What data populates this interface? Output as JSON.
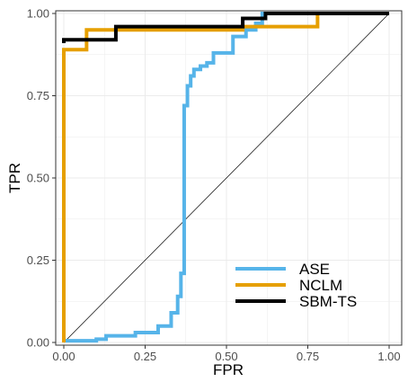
{
  "chart_data": {
    "type": "line",
    "xlabel": "FPR",
    "ylabel": "TPR",
    "xlim": [
      0,
      1
    ],
    "ylim": [
      0,
      1
    ],
    "xticks": [
      "0.00",
      "0.25",
      "0.50",
      "0.75",
      "1.00"
    ],
    "yticks": [
      "0.00",
      "0.25",
      "0.50",
      "0.75",
      "1.00"
    ],
    "grid": true,
    "legend_position": "bottom-right",
    "reference_line": {
      "from": [
        0,
        0
      ],
      "to": [
        1,
        1
      ],
      "color": "#000000"
    },
    "series": [
      {
        "name": "ASE",
        "color": "#56B4E9",
        "points": [
          [
            0.0,
            0.0
          ],
          [
            0.0,
            0.005
          ],
          [
            0.1,
            0.005
          ],
          [
            0.1,
            0.01
          ],
          [
            0.13,
            0.01
          ],
          [
            0.13,
            0.02
          ],
          [
            0.22,
            0.02
          ],
          [
            0.22,
            0.03
          ],
          [
            0.29,
            0.03
          ],
          [
            0.29,
            0.05
          ],
          [
            0.33,
            0.05
          ],
          [
            0.33,
            0.09
          ],
          [
            0.35,
            0.09
          ],
          [
            0.35,
            0.14
          ],
          [
            0.36,
            0.14
          ],
          [
            0.36,
            0.21
          ],
          [
            0.37,
            0.21
          ],
          [
            0.37,
            0.72
          ],
          [
            0.38,
            0.72
          ],
          [
            0.38,
            0.78
          ],
          [
            0.39,
            0.78
          ],
          [
            0.39,
            0.81
          ],
          [
            0.4,
            0.81
          ],
          [
            0.4,
            0.83
          ],
          [
            0.42,
            0.83
          ],
          [
            0.42,
            0.84
          ],
          [
            0.44,
            0.84
          ],
          [
            0.44,
            0.85
          ],
          [
            0.46,
            0.85
          ],
          [
            0.46,
            0.88
          ],
          [
            0.52,
            0.88
          ],
          [
            0.52,
            0.93
          ],
          [
            0.56,
            0.93
          ],
          [
            0.56,
            0.95
          ],
          [
            0.59,
            0.95
          ],
          [
            0.59,
            0.97
          ],
          [
            0.61,
            0.97
          ],
          [
            0.61,
            1.0
          ],
          [
            1.0,
            1.0
          ]
        ]
      },
      {
        "name": "NCLM",
        "color": "#E69F00",
        "points": [
          [
            0.0,
            0.0
          ],
          [
            0.0,
            0.89
          ],
          [
            0.07,
            0.89
          ],
          [
            0.07,
            0.95
          ],
          [
            0.16,
            0.95
          ],
          [
            0.16,
            0.95
          ],
          [
            0.55,
            0.95
          ],
          [
            0.55,
            0.96
          ],
          [
            0.78,
            0.96
          ],
          [
            0.78,
            1.0
          ],
          [
            1.0,
            1.0
          ]
        ]
      },
      {
        "name": "SBM-TS",
        "color": "#000000",
        "points": [
          [
            0.0,
            0.91
          ],
          [
            0.0,
            0.92
          ],
          [
            0.16,
            0.92
          ],
          [
            0.16,
            0.96
          ],
          [
            0.55,
            0.96
          ],
          [
            0.55,
            0.985
          ],
          [
            0.62,
            0.985
          ],
          [
            0.62,
            1.0
          ],
          [
            1.0,
            1.0
          ]
        ]
      }
    ]
  }
}
